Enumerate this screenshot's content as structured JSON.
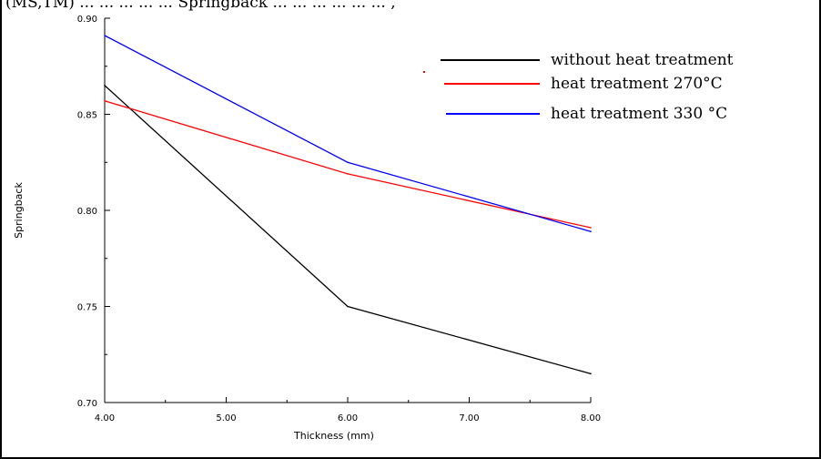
{
  "caption_fragment": "(MS,TM) ... ... ... ... ... Springback ... ... ... ... ... ... ,",
  "chart_data": {
    "type": "line",
    "title": "",
    "xlabel": "Thickness (mm)",
    "ylabel": "Springback",
    "xlim": [
      4.0,
      8.0
    ],
    "ylim": [
      0.7,
      0.9
    ],
    "x_ticks": [
      "4.00",
      "5.00",
      "6.00",
      "7.00",
      "8.00"
    ],
    "y_ticks": [
      "0.70",
      "0.75",
      "0.80",
      "0.85",
      "0.90"
    ],
    "x_tick_values": [
      4.0,
      5.0,
      6.0,
      7.0,
      8.0
    ],
    "y_tick_values": [
      0.7,
      0.75,
      0.8,
      0.85,
      0.9
    ],
    "grid": false,
    "legend_position": "top-right",
    "series": [
      {
        "name": "without heat treatment",
        "color": "#000000",
        "x": [
          4.0,
          6.0,
          8.0
        ],
        "y": [
          0.865,
          0.75,
          0.715
        ]
      },
      {
        "name": "heat treatment 270°C",
        "color": "#ff0000",
        "x": [
          4.0,
          6.0,
          8.0
        ],
        "y": [
          0.857,
          0.819,
          0.791
        ]
      },
      {
        "name": "heat treatment 330 °C",
        "color": "#0000ff",
        "x": [
          4.0,
          6.0,
          8.0
        ],
        "y": [
          0.891,
          0.825,
          0.789
        ]
      }
    ]
  }
}
